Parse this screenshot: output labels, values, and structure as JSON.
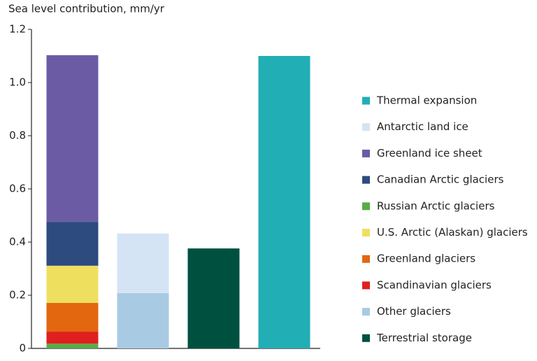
{
  "chart_data": {
    "type": "stacked_bar",
    "y_axis_label": "Sea level contribution, mm/yr",
    "categories": [
      null,
      null,
      null,
      null
    ],
    "series": [
      {
        "name": "Thermal expansion",
        "color": "#22aeb5",
        "values": [
          null,
          null,
          null,
          1.1
        ]
      },
      {
        "name": "Antarctic land ice",
        "color": "#d4e4f5",
        "values": [
          null,
          0.224,
          null,
          null
        ]
      },
      {
        "name": "Greenland ice sheet",
        "color": "#6b5ba5",
        "values": [
          0.627,
          null,
          null,
          null
        ]
      },
      {
        "name": "Canadian Arctic glaciers",
        "color": "#2e4b80",
        "values": [
          0.165,
          null,
          null,
          null
        ]
      },
      {
        "name": "Russian Arctic glaciers",
        "color": "#5aab48",
        "values": [
          0.018,
          null,
          null,
          null
        ]
      },
      {
        "name": "U.S. Arctic (Alaskan) glaciers",
        "color": "#efdf5f",
        "values": [
          0.14,
          null,
          null,
          null
        ]
      },
      {
        "name": "Greenland glaciers",
        "color": "#e2670f",
        "values": [
          0.108,
          null,
          null,
          null
        ]
      },
      {
        "name": "Scandinavian glaciers",
        "color": "#e01f1f",
        "values": [
          0.045,
          null,
          null,
          null
        ]
      },
      {
        "name": "Other glaciers",
        "color": "#a8cbe3",
        "values": [
          null,
          0.208,
          null,
          null
        ]
      },
      {
        "name": "Terrestrial storage",
        "color": "#005040",
        "values": [
          null,
          null,
          0.376,
          null
        ]
      }
    ],
    "ylim": [
      0,
      1.2
    ],
    "yticks": [
      0,
      0.2,
      0.4,
      0.6,
      0.8,
      {
        "value": 1,
        "label": "1.0"
      },
      1.2
    ],
    "legend": "right"
  }
}
